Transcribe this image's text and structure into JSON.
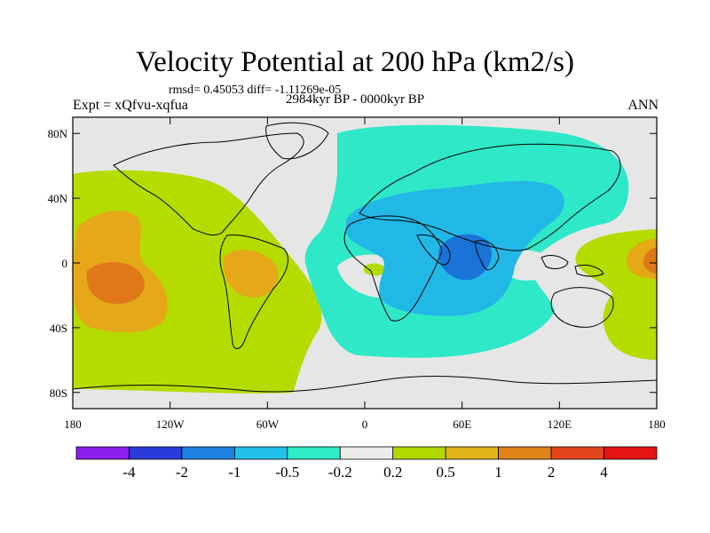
{
  "title": "Velocity Potential at 200 hPa (km2/s)",
  "rmsd_line": "rmsd= 0.45053 diff= -1.11269e-05",
  "period": "2984kyr BP - 0000kyr BP",
  "experiment": "Expt = xQfvu-xqfua",
  "season": "ANN",
  "colors": {
    "background": "#e6e6e6",
    "neg_weak": "#2ee8c8",
    "neg_mid": "#22b8e6",
    "neg_strong": "#1a74d8",
    "pos_weak": "#b4dc00",
    "pos_mid": "#e4a818",
    "pos_strong": "#e0781a"
  },
  "chart_data": {
    "type": "heatmap",
    "projection": "cylindrical equidistant",
    "lon_range": [
      -180,
      180
    ],
    "lat_range": [
      -90,
      90
    ],
    "lat_ticks": [
      "80N",
      "40N",
      "0",
      "40S",
      "80S"
    ],
    "lat_tick_values": [
      80,
      40,
      0,
      -40,
      -80
    ],
    "lon_ticks": [
      "180",
      "120W",
      "60W",
      "0",
      "60E",
      "120E",
      "180"
    ],
    "lon_tick_values": [
      -180,
      -120,
      -60,
      0,
      60,
      120,
      180
    ],
    "colorbar": {
      "labels": [
        "-4",
        "-2",
        "-1",
        "-0.5",
        "-0.2",
        "0.2",
        "0.5",
        "1",
        "2",
        "4"
      ],
      "colors": [
        "#8c1eeb",
        "#2a3cd8",
        "#1e80e0",
        "#22c0ea",
        "#2eecc6",
        "#ebebeb",
        "#b0d800",
        "#e0b418",
        "#e0841a",
        "#e4461c",
        "#e41414"
      ]
    }
  }
}
